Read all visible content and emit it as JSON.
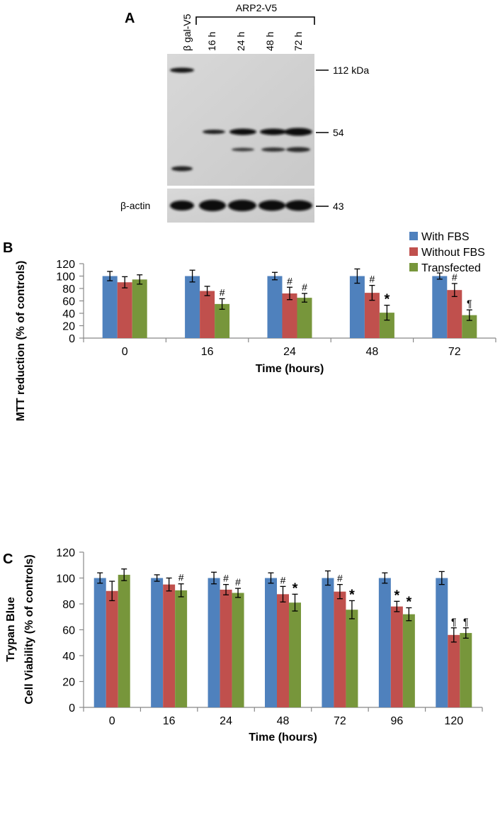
{
  "panel_a": {
    "label": "A",
    "lane_labels": [
      "β gal-V5",
      "16 h",
      "24 h",
      "48 h",
      "72 h"
    ],
    "group_label": "ARP2-V5",
    "marker_labels": [
      "112 kDa",
      "54",
      "43"
    ],
    "actin_label": "β-actin"
  },
  "chart_data": [
    {
      "panel": "B",
      "type": "bar",
      "categories": [
        "0",
        "16",
        "24",
        "48",
        "72"
      ],
      "xlabel": "Time (hours)",
      "ylabel": "MTT  reduction  (% of controls)",
      "ylim": [
        0,
        120
      ],
      "yticks": [
        0,
        20,
        40,
        60,
        80,
        100,
        120
      ],
      "legend_position": "top-right",
      "series": [
        {
          "name": "With FBS",
          "color": "#4f81bd",
          "values": [
            100,
            100,
            100,
            100,
            100
          ],
          "errors": [
            7.5,
            9.5,
            6,
            11.5,
            5
          ]
        },
        {
          "name": "Without FBS",
          "color": "#c0504d",
          "values": [
            90,
            76,
            72,
            73,
            77.5
          ],
          "errors": [
            9,
            7.5,
            10,
            12,
            10.5
          ]
        },
        {
          "name": "Transfected",
          "color": "#77963b",
          "values": [
            94.5,
            55,
            65,
            41,
            37
          ],
          "errors": [
            7.5,
            8.5,
            7,
            12,
            8.5
          ]
        }
      ],
      "annotations": [
        {
          "series": 2,
          "index": 1,
          "text": "#"
        },
        {
          "series": 1,
          "index": 2,
          "text": "#"
        },
        {
          "series": 2,
          "index": 2,
          "text": "#"
        },
        {
          "series": 1,
          "index": 3,
          "text": "#"
        },
        {
          "series": 2,
          "index": 3,
          "text": "*"
        },
        {
          "series": 1,
          "index": 4,
          "text": "#"
        },
        {
          "series": 2,
          "index": 4,
          "text": "¶"
        }
      ]
    },
    {
      "panel": "C",
      "type": "bar",
      "categories": [
        "0",
        "16",
        "24",
        "48",
        "72",
        "96",
        "120"
      ],
      "xlabel": "Time (hours)",
      "ylabel_lines": [
        "Trypan Blue",
        "Cell Viability  (% of controls)"
      ],
      "ylim": [
        0,
        120
      ],
      "yticks": [
        0,
        20,
        40,
        60,
        80,
        100,
        120
      ],
      "series": [
        {
          "name": "With FBS",
          "color": "#4f81bd",
          "values": [
            100,
            100,
            100,
            100,
            100,
            100,
            100
          ],
          "errors": [
            4,
            2.5,
            4.5,
            4,
            5.5,
            4,
            5
          ]
        },
        {
          "name": "Without FBS",
          "color": "#c0504d",
          "values": [
            90,
            95,
            91,
            87.5,
            89.5,
            78,
            56
          ],
          "errors": [
            7.5,
            5,
            4,
            6,
            5.5,
            4,
            5.5
          ]
        },
        {
          "name": "Transfected",
          "color": "#77963b",
          "values": [
            102.5,
            90.5,
            88.5,
            81,
            75.5,
            72,
            57.5
          ],
          "errors": [
            4.5,
            5,
            3.5,
            6.5,
            7,
            5,
            4
          ]
        }
      ],
      "annotations": [
        {
          "series": 2,
          "index": 1,
          "text": "#"
        },
        {
          "series": 1,
          "index": 2,
          "text": "#"
        },
        {
          "series": 2,
          "index": 2,
          "text": "#"
        },
        {
          "series": 1,
          "index": 3,
          "text": "#"
        },
        {
          "series": 2,
          "index": 3,
          "text": "*"
        },
        {
          "series": 1,
          "index": 4,
          "text": "#"
        },
        {
          "series": 2,
          "index": 4,
          "text": "*"
        },
        {
          "series": 1,
          "index": 5,
          "text": "*"
        },
        {
          "series": 2,
          "index": 5,
          "text": "*"
        },
        {
          "series": 1,
          "index": 6,
          "text": "¶"
        },
        {
          "series": 2,
          "index": 6,
          "text": "¶"
        }
      ]
    }
  ],
  "panel_labels": {
    "b": "B",
    "c": "C"
  }
}
